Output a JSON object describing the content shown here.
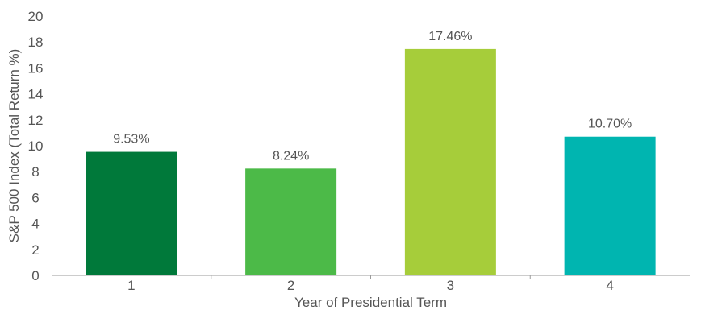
{
  "chart_data": {
    "type": "bar",
    "title": "",
    "xlabel": "Year of Presidential Term",
    "ylabel": "S&P 500 Index (Total Return %)",
    "categories": [
      "1",
      "2",
      "3",
      "4"
    ],
    "values": [
      9.53,
      8.24,
      17.46,
      10.7
    ],
    "data_labels": [
      "9.53%",
      "8.24%",
      "17.46%",
      "10.70%"
    ],
    "ylim": [
      0,
      20
    ],
    "yticks": [
      0,
      2,
      4,
      6,
      8,
      10,
      12,
      14,
      16,
      18,
      20
    ],
    "grid": false,
    "legend": "none",
    "colors": [
      "#00793a",
      "#4cba48",
      "#a6cd3a",
      "#00b5b0"
    ]
  }
}
